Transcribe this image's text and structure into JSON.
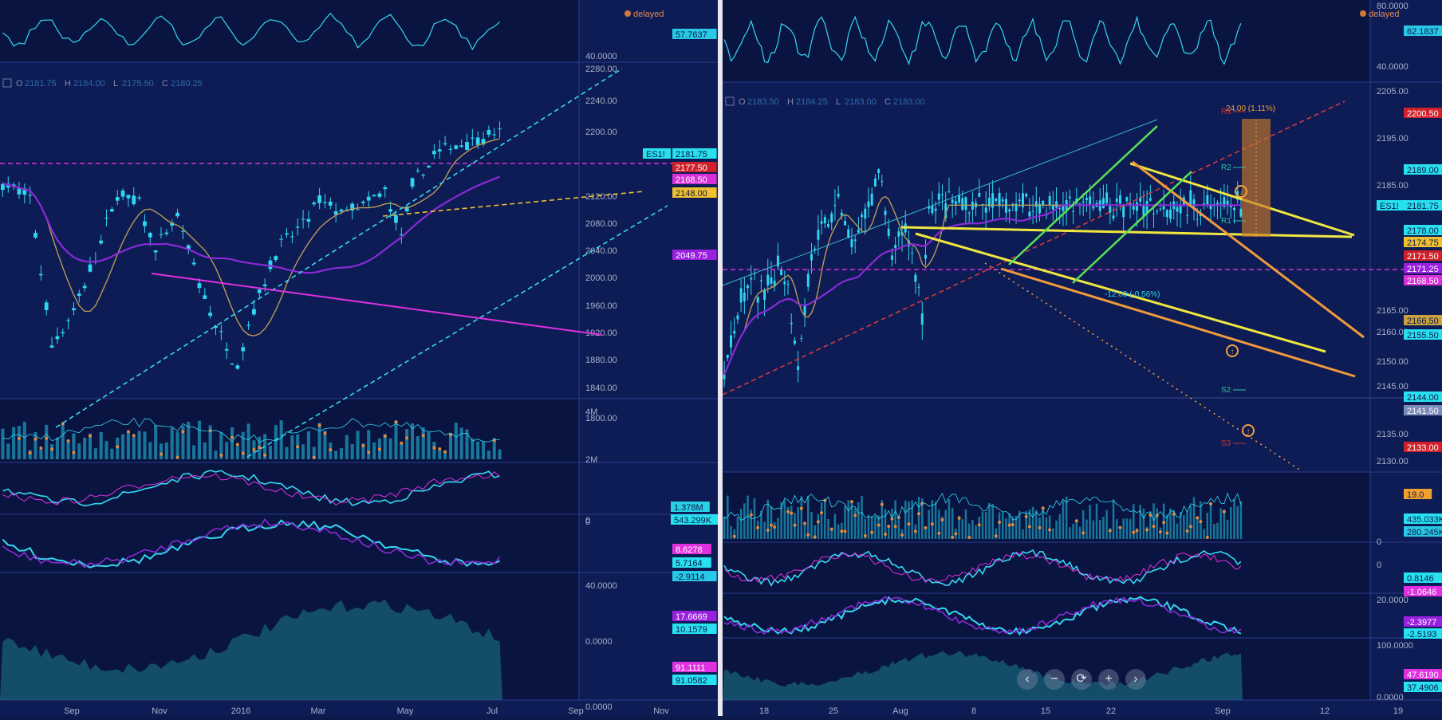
{
  "colors": {
    "bg": "#0d1c55",
    "bg_dark": "#091441",
    "divider": "#e8e8ee",
    "axis_text": "#aab0c8",
    "candle": "#2fd6f2",
    "magenta": "#e030e0",
    "cyan_dash": "#35d7f0",
    "yellow": "#f0e640",
    "orange": "#f09a3c",
    "green": "#58e25a",
    "red_dash": "#d63a3a",
    "purple": "#8a2ad6",
    "tan": "#b89a55"
  },
  "left": {
    "delayed_label": "delayed",
    "ohlc": {
      "o_label": "O",
      "o": "2181.75",
      "h_label": "H",
      "h": "2184.00",
      "l_label": "L",
      "l": "2175.50",
      "c_label": "C",
      "c": "2180.25"
    },
    "x_ticks": [
      "Sep",
      "Nov",
      "2016",
      "Mar",
      "May",
      "Jul",
      "Sep",
      "Nov"
    ],
    "rsi_axis": [
      "40.0000"
    ],
    "main_axis": [
      "2280.00",
      "2240.00",
      "2200.00",
      "2120.00",
      "2080.00",
      "2040.00",
      "2000.00",
      "1960.00",
      "1920.00",
      "1880.00",
      "1840.00",
      "1800.00"
    ],
    "volume_axis": [
      "4M",
      "2M",
      "0"
    ],
    "macd_axis": [
      "0"
    ],
    "stoch_axis": [
      "40.0000",
      "0.0000"
    ],
    "last_axis": [
      "0.0000"
    ],
    "badges": [
      {
        "text": "57.7637",
        "color": "#28c8e6",
        "fg": "#0b1a4a"
      },
      {
        "text": "ES1!",
        "color": "#28e0f0",
        "fg": "#0b1a4a"
      },
      {
        "text": "2181.75",
        "color": "#28e0f0",
        "fg": "#0b1a4a"
      },
      {
        "text": "2177.50",
        "color": "#d0202a",
        "fg": "#ffffff"
      },
      {
        "text": "2168.50",
        "color": "#d630d6",
        "fg": "#ffffff"
      },
      {
        "text": "2148.00",
        "color": "#f0c030",
        "fg": "#0b1a4a"
      },
      {
        "text": "2049.75",
        "color": "#9a20e0",
        "fg": "#ffffff"
      },
      {
        "text": "1.378M",
        "color": "#28d0e6",
        "fg": "#0b1a4a"
      },
      {
        "text": "543.299K",
        "color": "#28e0f0",
        "fg": "#0b1a4a"
      },
      {
        "text": "8.6278",
        "color": "#e030e0",
        "fg": "#ffffff"
      },
      {
        "text": "5.7164",
        "color": "#28e0f0",
        "fg": "#0b1a4a"
      },
      {
        "text": "-2.9114",
        "color": "#28c8e6",
        "fg": "#0b1a4a"
      },
      {
        "text": "17.6669",
        "color": "#9a20e0",
        "fg": "#ffffff"
      },
      {
        "text": "10.1579",
        "color": "#28e0f0",
        "fg": "#0b1a4a"
      },
      {
        "text": "91.1111",
        "color": "#e030e0",
        "fg": "#ffffff"
      },
      {
        "text": "91.0582",
        "color": "#28e0f0",
        "fg": "#0b1a4a"
      }
    ]
  },
  "right": {
    "delayed_label": "delayed",
    "ohlc": {
      "o_label": "O",
      "o": "2183.50",
      "h_label": "H",
      "h": "2184.25",
      "l_label": "L",
      "l": "2183.00",
      "c_label": "C",
      "c": "2183.00"
    },
    "x_ticks": [
      "18",
      "25",
      "Aug",
      "8",
      "15",
      "22",
      "Sep",
      "12",
      "19"
    ],
    "rsi_axis": [
      "80.0000",
      "40.0000"
    ],
    "main_axis": [
      "2205.00",
      "2195.00",
      "2185.00",
      "2165.00",
      "2160.00",
      "2150.00",
      "2145.00",
      "2135.00",
      "2130.00"
    ],
    "volume_axis": [
      "0"
    ],
    "macd_axis": [
      "0"
    ],
    "stoch_axis": [
      "20.0000"
    ],
    "last_axis": [
      "100.0000",
      "0.0000"
    ],
    "badges": [
      {
        "text": "62.1837",
        "color": "#28c8e6",
        "fg": "#0b1a4a"
      },
      {
        "text": "2200.50",
        "color": "#d0202a",
        "fg": "#ffffff"
      },
      {
        "text": "2189.00",
        "color": "#28e0f0",
        "fg": "#0b1a4a"
      },
      {
        "text": "ES1!",
        "color": "#28e0f0",
        "fg": "#0b1a4a"
      },
      {
        "text": "2181.75",
        "color": "#28e0f0",
        "fg": "#0b1a4a"
      },
      {
        "text": "2178.00",
        "color": "#28e0f0",
        "fg": "#0b1a4a"
      },
      {
        "text": "2174.75",
        "color": "#f0c030",
        "fg": "#0b1a4a"
      },
      {
        "text": "2171.50",
        "color": "#d0202a",
        "fg": "#ffffff"
      },
      {
        "text": "2171.25",
        "color": "#9a20e0",
        "fg": "#ffffff"
      },
      {
        "text": "2168.50",
        "color": "#d630d6",
        "fg": "#ffffff"
      },
      {
        "text": "2166.50",
        "color": "#c8a040",
        "fg": "#0b1a4a"
      },
      {
        "text": "2155.50",
        "color": "#28e0f0",
        "fg": "#0b1a4a"
      },
      {
        "text": "2144.00",
        "color": "#28e0f0",
        "fg": "#0b1a4a"
      },
      {
        "text": "2141.50",
        "color": "#7a8ab8",
        "fg": "#ffffff"
      },
      {
        "text": "2133.00",
        "color": "#d0202a",
        "fg": "#ffffff"
      },
      {
        "text": "19.0",
        "color": "#f0a030",
        "fg": "#0b1a4a"
      },
      {
        "text": "435.033K",
        "color": "#28e0f0",
        "fg": "#0b1a4a"
      },
      {
        "text": "280.245K",
        "color": "#28c8e6",
        "fg": "#0b1a4a"
      },
      {
        "text": "0.8146",
        "color": "#28e0f0",
        "fg": "#0b1a4a"
      },
      {
        "text": "-1.0646",
        "color": "#e030e0",
        "fg": "#ffffff"
      },
      {
        "text": "-2.3977",
        "color": "#9a20e0",
        "fg": "#ffffff"
      },
      {
        "text": "-2.5193",
        "color": "#28e0f0",
        "fg": "#0b1a4a"
      },
      {
        "text": "47.6190",
        "color": "#e030e0",
        "fg": "#ffffff"
      },
      {
        "text": "37.4906",
        "color": "#28e0f0",
        "fg": "#0b1a4a"
      }
    ],
    "annotations": {
      "measure_up": "24.00 (1.11%)",
      "measure_down": "-12.00 (-0.56%)",
      "pivots": [
        "R3",
        "R2",
        "R1",
        "S2",
        "S3"
      ]
    }
  },
  "chart_data": [
    {
      "type": "candlestick",
      "title": "",
      "symbol": "ES1!",
      "x_ticks": [
        "Sep",
        "Nov",
        "2016",
        "Mar",
        "May",
        "Jul",
        "Sep",
        "Nov"
      ],
      "ylim": [
        1790,
        2290
      ],
      "anchors_price": [
        [
          0,
          2110
        ],
        [
          5,
          2088
        ],
        [
          9,
          1870
        ],
        [
          13,
          1920
        ],
        [
          17,
          2000
        ],
        [
          21,
          2095
        ],
        [
          25,
          2080
        ],
        [
          28,
          2010
        ],
        [
          32,
          2060
        ],
        [
          36,
          1960
        ],
        [
          40,
          1880
        ],
        [
          43,
          1840
        ],
        [
          46,
          1925
        ],
        [
          50,
          2010
        ],
        [
          54,
          2040
        ],
        [
          58,
          2082
        ],
        [
          62,
          2068
        ],
        [
          66,
          2075
        ],
        [
          70,
          2098
        ],
        [
          73,
          2030
        ],
        [
          75,
          2105
        ],
        [
          79,
          2152
        ],
        [
          83,
          2168
        ],
        [
          87,
          2178
        ],
        [
          91,
          2181.75
        ]
      ],
      "indicators": {
        "rsi_last": 57.7637,
        "volume_last": "1.378M",
        "volume_avg": "543.299K",
        "macd": [
          8.6278,
          5.7164,
          -2.9114
        ],
        "stoch": [
          17.6669,
          10.1579
        ],
        "last": [
          91.1111,
          91.0582
        ]
      }
    },
    {
      "type": "candlestick",
      "title": "",
      "symbol": "ES1!",
      "x_ticks": [
        "18",
        "25",
        "Aug",
        "8",
        "15",
        "22",
        "Sep",
        "12",
        "19"
      ],
      "ylim": [
        2127,
        2207
      ],
      "anchors_price": [
        [
          0,
          2147
        ],
        [
          4,
          2160
        ],
        [
          8,
          2166
        ],
        [
          12,
          2163
        ],
        [
          16,
          2170
        ],
        [
          19,
          2166
        ],
        [
          22,
          2149
        ],
        [
          26,
          2172
        ],
        [
          30,
          2177
        ],
        [
          34,
          2183
        ],
        [
          38,
          2173
        ],
        [
          42,
          2179
        ],
        [
          46,
          2189
        ],
        [
          50,
          2171
        ],
        [
          54,
          2177
        ],
        [
          57,
          2168
        ],
        [
          59,
          2159
        ],
        [
          61,
          2181.75
        ]
      ],
      "levels": [
        2200.5,
        2189,
        2178,
        2174.75,
        2171.5,
        2171.25,
        2168.5,
        2166.5,
        2155.5,
        2144,
        2141.5,
        2133
      ],
      "indicators": {
        "rsi_last": 62.1837,
        "volume_last": "435.033K",
        "volume_avg": "280.245K",
        "vol_badge": 19.0,
        "macd": [
          0.8146,
          -1.0646
        ],
        "stoch": [
          -2.3977,
          -2.5193
        ],
        "last": [
          47.619,
          37.4906
        ]
      }
    }
  ]
}
